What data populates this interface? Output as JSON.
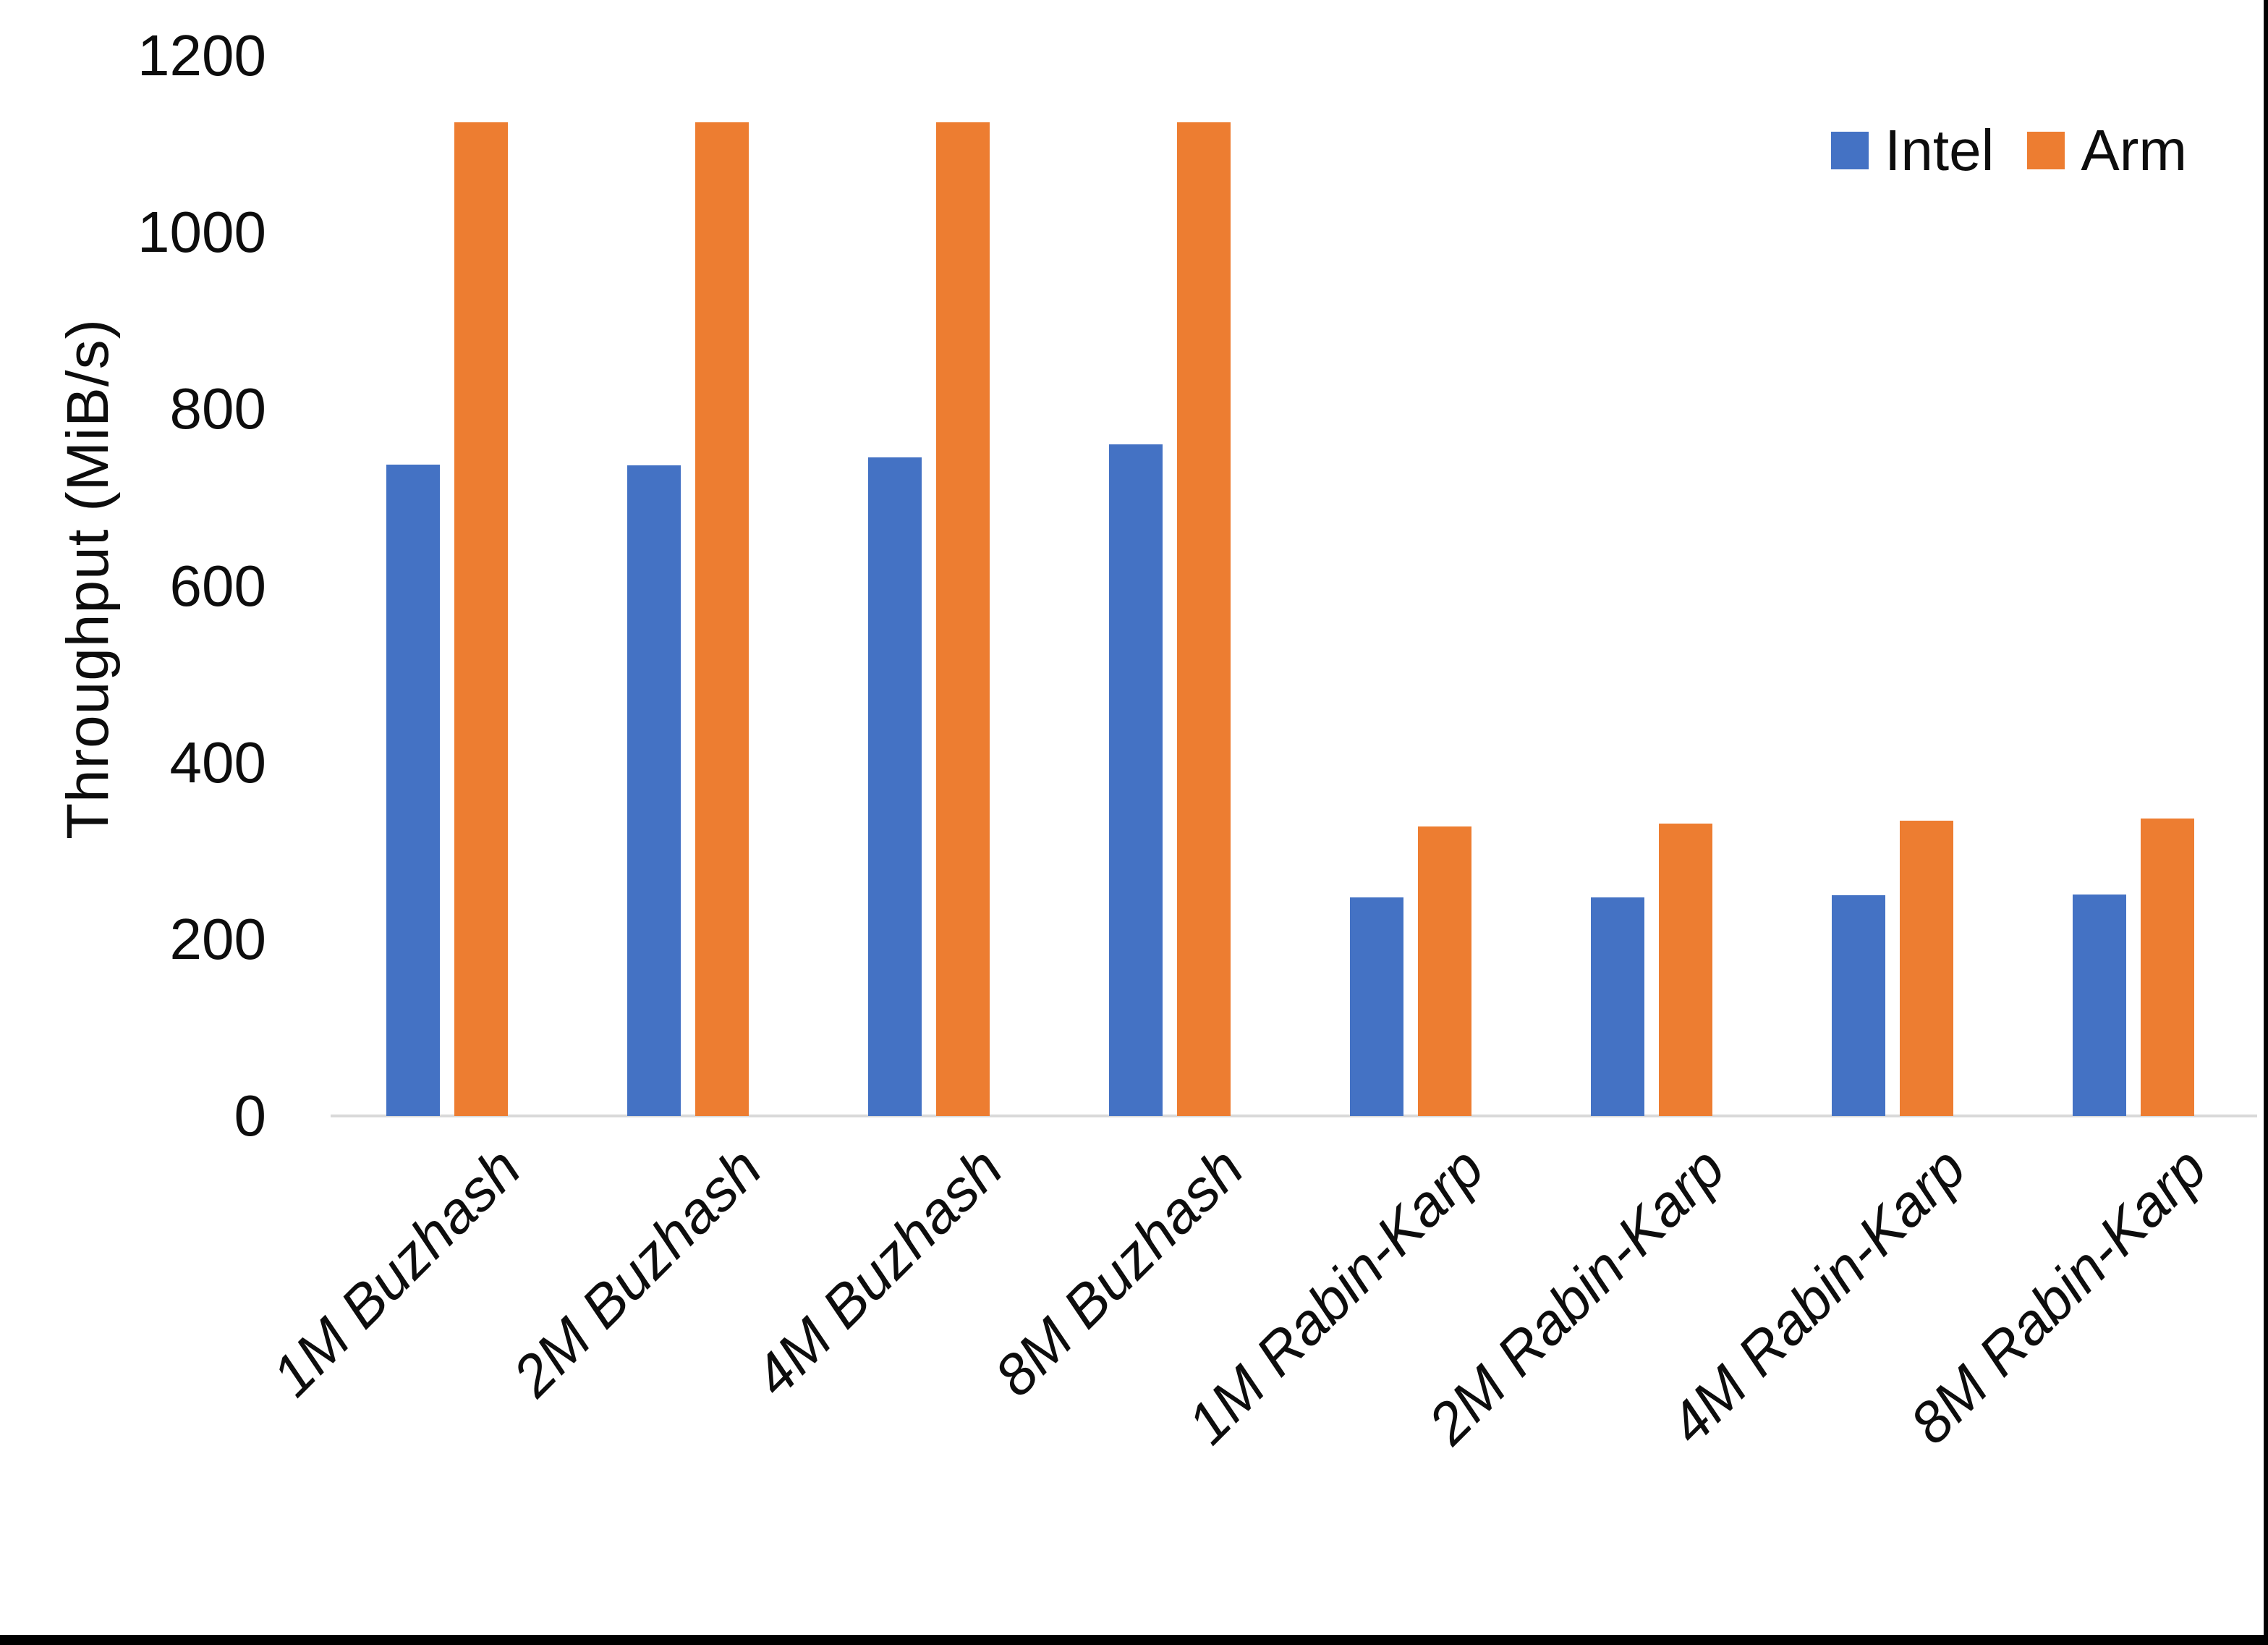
{
  "chart_data": {
    "type": "bar",
    "title": "",
    "xlabel": "",
    "ylabel": "Throughput (MiB/s)",
    "categories": [
      "1M Buzhash",
      "2M Buzhash",
      "4M Buzhash",
      "8M Buzhash",
      "1M Rabin-Karp",
      "2M Rabin-Karp",
      "4M Rabin-Karp",
      "8M Rabin-Karp"
    ],
    "series": [
      {
        "name": "Intel",
        "color": "#4472C4",
        "values": [
          737,
          736,
          745,
          760,
          247,
          247,
          250,
          251
        ]
      },
      {
        "name": "Arm",
        "color": "#ED7D31",
        "values": [
          1125,
          1125,
          1125,
          1125,
          328,
          331,
          334,
          337
        ]
      }
    ],
    "ylim": [
      0,
      1200
    ],
    "ytick_step": 200,
    "ytick_labels": [
      "0",
      "200",
      "400",
      "600",
      "800",
      "1000",
      "1200"
    ],
    "grid": false,
    "legend_position": "top-right",
    "axis_line_color": "#d9d9d9"
  }
}
